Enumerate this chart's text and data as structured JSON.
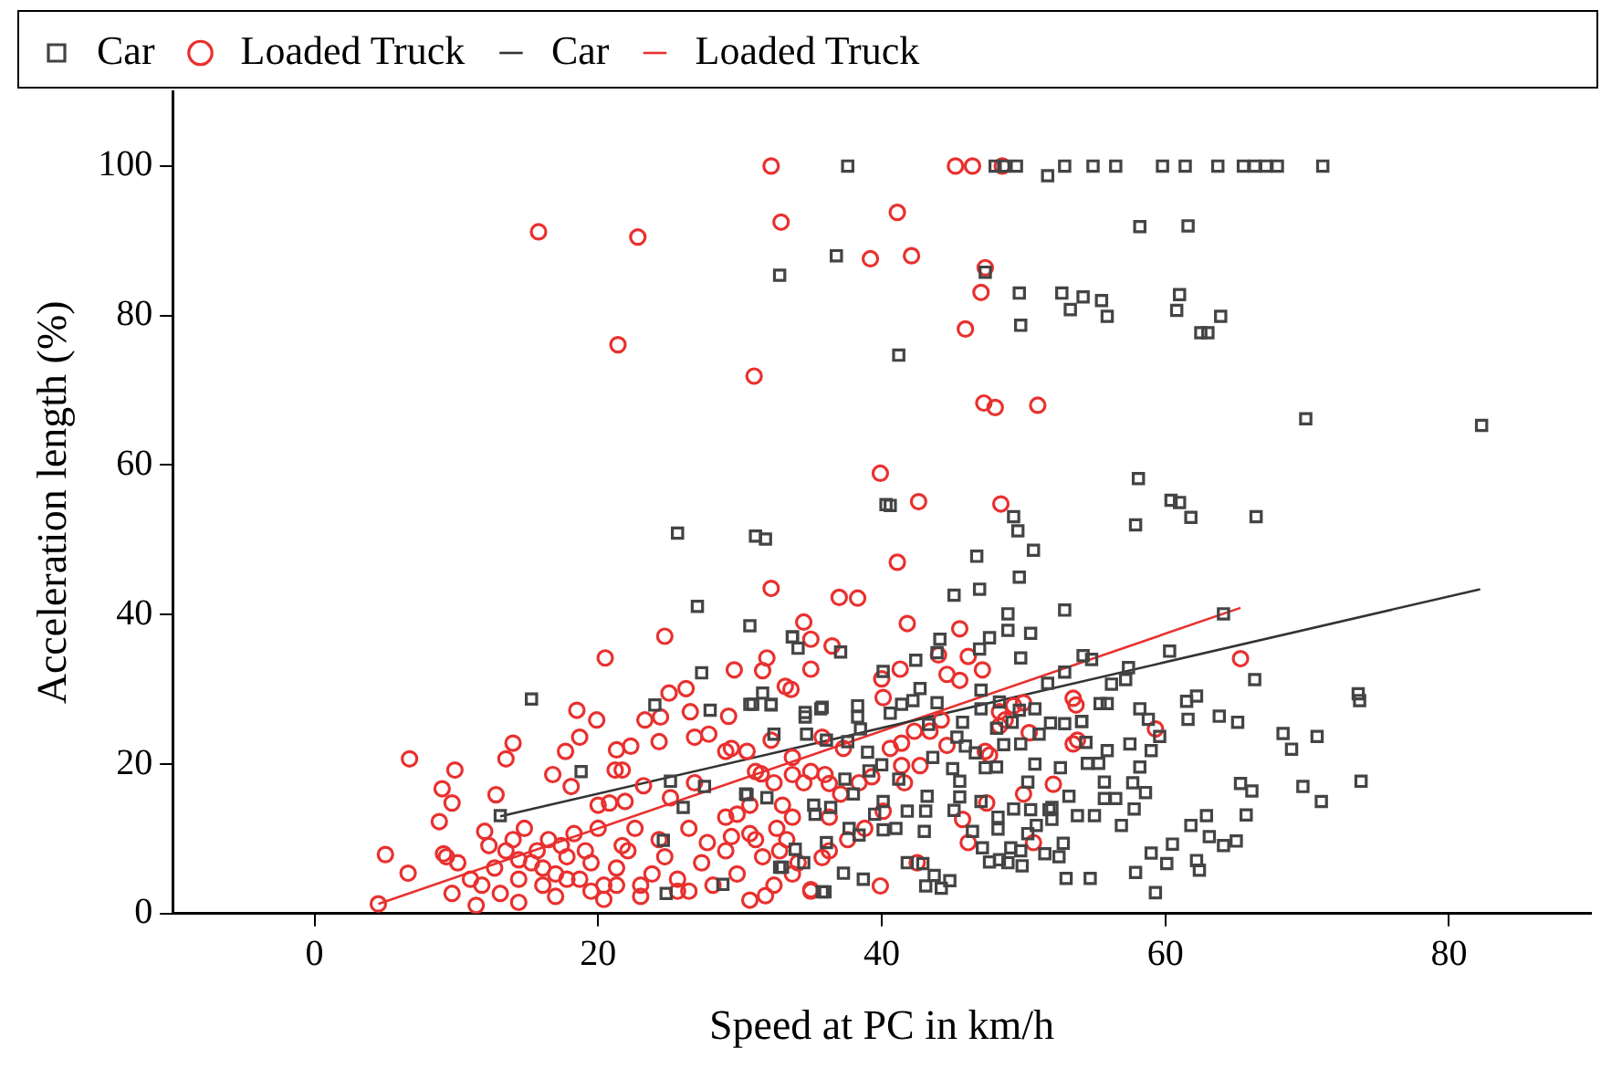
{
  "chart_data": {
    "type": "scatter",
    "xlabel": "Speed at PC in km/h",
    "ylabel": "Acceleration length (%)",
    "xlim": [
      -10,
      90
    ],
    "xticks": [
      0,
      20,
      40,
      60,
      80
    ],
    "ylim": [
      0,
      110
    ],
    "yticks": [
      0,
      20,
      40,
      60,
      80,
      100
    ],
    "grid": false,
    "legend": "top left",
    "series": [
      {
        "name": "Car",
        "color": "#444444",
        "marker": "square",
        "x": [
          37.6,
          48,
          48.6,
          49.5,
          51.7,
          52.9,
          54.9,
          56.5,
          59.8,
          61.4,
          63.7,
          65.5,
          66.3,
          67.1,
          67.9,
          71.1,
          58.2,
          61.6,
          36.8,
          32.8,
          47.3,
          49.7,
          52.7,
          54.2,
          55.5,
          53.3,
          55.9,
          61,
          60.8,
          63.9,
          62.5,
          63,
          49.8,
          41.2,
          69.9,
          82.3,
          58.1,
          61,
          40.6,
          25.6,
          31.1,
          31.8,
          27,
          30.7,
          33.7,
          27.3,
          15.3,
          24,
          27.9,
          30.7,
          32.2,
          31.6,
          32.4,
          18.8,
          25.1,
          27.5,
          30.5,
          31.9,
          13.1,
          26,
          24.6,
          24.8,
          28.8,
          33,
          35.3,
          35.8,
          34.6,
          35.7,
          40.3,
          49.3,
          49.6,
          50.7,
          46.7,
          49.7,
          46.9,
          45.1,
          60.4,
          57.9,
          61.8,
          66.4,
          52.9,
          48.9,
          64.1,
          60.3,
          66.3,
          73.6,
          73.7,
          68.3,
          70.7,
          68.9,
          73.8,
          69.7,
          71,
          65.3,
          66.1,
          65.7,
          65,
          64.1,
          62.9,
          61.8,
          63.1,
          60.5,
          59,
          60.1,
          62.2,
          62.4,
          59.3,
          57.9,
          54.7,
          53,
          61.5,
          62.2,
          61.6,
          63.8,
          65.1,
          58.2,
          58.8,
          59.6,
          59,
          57.5,
          58.2,
          57.7,
          58.6,
          57.8,
          56.9,
          55.7,
          56.5,
          55.7,
          55.9,
          55.4,
          55.9,
          54.4,
          54.1,
          55.3,
          54.5,
          52.6,
          53.2,
          53.8,
          55,
          52,
          52,
          52.8,
          51.5,
          52.5,
          50.3,
          50.9,
          49.8,
          49.9,
          48.9,
          48.3,
          47.6,
          43.1,
          44.2,
          44.8,
          43.7,
          41.8,
          42.9,
          38.7,
          37.3,
          36,
          49.1,
          48.2,
          49.3,
          50.5,
          51.8,
          50.3,
          50.8,
          49.8,
          48.1,
          48.6,
          48.1,
          45.9,
          45.3,
          45.7,
          46.6,
          47.3,
          45,
          45.5,
          45.5,
          47,
          45.1,
          46.4,
          47.1,
          48.2,
          43.2,
          43.1,
          41.8,
          41.2,
          43,
          43.6,
          43.9,
          42.7,
          42.2,
          41.4,
          40.6,
          40.1,
          42.4,
          43.9,
          44.1,
          46.9,
          47.6,
          48.9,
          50.5,
          49.8,
          47,
          47,
          48.3,
          49.7,
          50.8,
          51.7,
          52.9,
          54.2,
          54.8,
          56.2,
          57.2,
          57.4,
          51.9,
          52.9,
          54.1,
          51.1,
          49.2,
          43.3,
          40,
          39,
          38.5,
          37.6,
          36.1,
          34.7,
          40.1,
          39.5,
          40.1,
          41,
          39.1,
          38,
          37.4,
          36.4,
          35.2,
          37.7,
          38.4,
          33.9,
          32.8,
          34.5,
          36.1,
          30.4,
          32.2,
          30.9,
          34.1,
          33.7,
          37.1,
          35.8,
          38.3,
          38.3,
          34.6
        ],
        "values": [
          100,
          100,
          100,
          100,
          98.7,
          100,
          100,
          100,
          100,
          100,
          100,
          100,
          100,
          100,
          100,
          100,
          91.9,
          92,
          88,
          85.4,
          85.8,
          83,
          83,
          82.5,
          82,
          80.8,
          79.9,
          82.8,
          80.7,
          79.9,
          77.7,
          77.7,
          78.7,
          74.7,
          66.2,
          65.3,
          58.2,
          55,
          54.6,
          50.9,
          50.5,
          50.1,
          41.1,
          38.5,
          37,
          32.2,
          28.7,
          27.9,
          27.2,
          28,
          27.9,
          29.5,
          24,
          19,
          17.7,
          17,
          15.9,
          15.5,
          13.1,
          14.2,
          9.8,
          2.7,
          3.9,
          6.2,
          13.3,
          2.9,
          26.9,
          27.4,
          54.7,
          53.1,
          51.2,
          48.6,
          47.8,
          45,
          43.4,
          42.6,
          55.3,
          52,
          53,
          53.1,
          40.6,
          40.1,
          40.1,
          35.1,
          31.3,
          29.4,
          28.5,
          24.1,
          23.7,
          22,
          17.7,
          17,
          15,
          17.4,
          16.4,
          13.2,
          9.7,
          9.1,
          13.1,
          11.8,
          10.3,
          9.3,
          8.1,
          6.7,
          7.1,
          5.8,
          2.8,
          5.5,
          4.7,
          4.7,
          28.4,
          29.1,
          26,
          26.4,
          25.6,
          27.4,
          26,
          23.7,
          21.8,
          22.7,
          19.6,
          17.5,
          16.2,
          14,
          11.8,
          15.4,
          15.4,
          17.6,
          21.8,
          28.1,
          28.1,
          22.9,
          25.7,
          20.1,
          20.1,
          19.5,
          15.7,
          13.1,
          13.1,
          14.2,
          12.6,
          9.4,
          8,
          7.6,
          10.7,
          11.8,
          8.4,
          6.4,
          6.8,
          7.2,
          6.9,
          3.7,
          3.4,
          4.4,
          5.1,
          6.8,
          6.7,
          4.6,
          5.4,
          2.9,
          8.8,
          11.3,
          14,
          13.9,
          13.9,
          17.6,
          20,
          22.7,
          19.6,
          22.6,
          24.8,
          22.4,
          23.6,
          25.6,
          21.5,
          19.5,
          19.4,
          17.7,
          15.6,
          15,
          13.8,
          11,
          8.8,
          12.9,
          15.7,
          13.7,
          13.7,
          18,
          11,
          20.9,
          28.2,
          30.1,
          28.5,
          28,
          26.8,
          32.4,
          33.9,
          34.9,
          36.7,
          35.4,
          36.9,
          37.9,
          37.5,
          34.2,
          29.9,
          27.4,
          28.3,
          27.2,
          27.4,
          30.8,
          32.3,
          34.5,
          34,
          30.7,
          31.3,
          32.9,
          25.5,
          25.4,
          25.7,
          24,
          25.6,
          25.3,
          19.9,
          21.6,
          24.7,
          23,
          23.2,
          24,
          15,
          13.3,
          11.2,
          11.4,
          19.1,
          16,
          18,
          14.2,
          14.5,
          11.4,
          10.5,
          8.6,
          6.2,
          6.8,
          9.5,
          16,
          28,
          28,
          35.5,
          37,
          35,
          27.6,
          27.8,
          26.3,
          26.3
        ]
      },
      {
        "name": "Loaded Truck",
        "color": "#e8312f",
        "marker": "circle",
        "x": [
          32.2,
          45.2,
          46.4,
          48.5,
          15.8,
          22.8,
          32.9,
          41.1,
          39.2,
          42.1,
          47.3,
          47,
          45.9,
          21.4,
          31,
          47.2,
          48,
          51,
          39.9,
          42.6,
          48.4,
          32.2,
          37,
          24.7,
          20.5,
          34.5,
          35,
          36.5,
          31.9,
          29.6,
          26.2,
          25,
          33.2,
          33.6,
          18.5,
          19.9,
          23.3,
          24.4,
          26.5,
          29.2,
          6.7,
          9.9,
          9,
          9.7,
          8.8,
          12.8,
          13.5,
          14,
          5,
          6.6,
          4.5,
          12,
          9.1,
          16.8,
          18.1,
          17.7,
          18.7,
          21.3,
          22.3,
          21.2,
          21.7,
          20,
          20.8,
          21.9,
          24.3,
          23.2,
          25.1,
          26.8,
          26.8,
          27.8,
          29,
          29.4,
          31.5,
          30.7,
          33,
          34.5,
          36.3,
          29,
          29.8,
          32.6,
          33.3,
          35.8,
          35,
          30.7,
          31.8,
          9.3,
          10.1,
          11,
          11.8,
          12.7,
          13.5,
          14.4,
          15.3,
          16.1,
          17,
          17.8,
          18.7,
          19.5,
          20.4,
          21.3,
          22.1,
          23,
          23.8,
          24.7,
          25.6,
          26.4,
          27.3,
          28.1,
          29,
          29.8,
          31.6,
          32.4,
          33.7,
          9.7,
          11.4,
          13.1,
          14.8,
          16.5,
          18.3,
          20,
          21.7,
          22.6,
          24.3,
          26.4,
          27.7,
          29.4,
          31.1,
          14.4,
          17,
          20.4,
          23,
          25.6,
          12.3,
          14,
          15.7,
          17.4,
          19.1,
          14.4,
          16.1,
          17.8,
          19.5,
          21.3,
          41.1,
          38.3,
          41.8,
          45.5,
          31.6,
          35,
          41.3,
          40,
          40.1,
          44,
          44.6,
          45.5,
          46.1,
          47.1,
          65.3,
          53.5,
          53.7,
          53.8,
          53.5,
          59.3,
          52.1,
          50,
          47.4,
          50.7,
          46.1,
          45.7,
          47.6,
          48.3,
          48.7,
          49.3,
          50,
          50.4,
          47.3,
          44.6,
          42.7,
          41.4,
          40.6,
          41.6,
          40.1,
          42.5,
          39.9,
          35,
          36.3,
          34.1,
          32.8,
          30.7,
          33.7,
          36.3,
          37.6,
          38.8,
          38.4,
          39.3,
          37.1,
          36,
          35,
          33.7,
          32.4,
          31.1,
          30.5,
          32.2,
          33.7,
          35.8,
          37.3,
          41.4,
          42.3,
          43.4,
          44.2,
          48.3
        ],
        "values": [
          100,
          100,
          100,
          100,
          91.2,
          90.5,
          92.5,
          93.8,
          87.6,
          88,
          86.4,
          83.1,
          78.2,
          76.1,
          71.9,
          68.3,
          67.7,
          68,
          58.9,
          55.1,
          54.8,
          43.5,
          42.3,
          37.1,
          34.2,
          39,
          36.7,
          35.8,
          34.2,
          32.6,
          30.1,
          29.5,
          30.4,
          30,
          27.2,
          25.9,
          25.9,
          26.3,
          27,
          26.4,
          20.7,
          19.2,
          16.7,
          14.8,
          12.3,
          15.9,
          20.7,
          22.8,
          7.9,
          5.4,
          1.3,
          11,
          8,
          18.6,
          17,
          21.7,
          23.6,
          21.9,
          22.4,
          19.2,
          19.2,
          14.5,
          14.8,
          15,
          23,
          17.1,
          15.5,
          17.5,
          23.6,
          24,
          21.7,
          22.1,
          18.7,
          14.5,
          14.5,
          17.5,
          17.4,
          12.9,
          13.3,
          11.4,
          9.9,
          7.5,
          3,
          1.8,
          2.4,
          7.6,
          6.8,
          4.6,
          3.8,
          6.1,
          8.4,
          4.6,
          6.8,
          3.8,
          5.3,
          7.6,
          4.6,
          6.8,
          3.8,
          6.1,
          8.4,
          3.8,
          5.3,
          7.6,
          4.6,
          3,
          6.8,
          3.8,
          8.4,
          5.3,
          7.6,
          3.8,
          5.3,
          2.7,
          1.1,
          2.7,
          11.4,
          9.9,
          10.7,
          11.4,
          9.1,
          11.4,
          9.9,
          11.4,
          9.5,
          10.3,
          9.9,
          1.5,
          2.3,
          1.9,
          2.3,
          3,
          9.1,
          9.9,
          8.4,
          9.1,
          8.4,
          7.2,
          6.1,
          4.6,
          3,
          3.8,
          47,
          42.2,
          38.8,
          38.1,
          32.5,
          32.7,
          32.7,
          31.4,
          28.9,
          34.6,
          32,
          31.2,
          34.4,
          32.6,
          34.1,
          28.8,
          27.9,
          23.2,
          22.7,
          24.7,
          17.3,
          16,
          14.8,
          9.5,
          9.5,
          12.6,
          21.2,
          25.1,
          25.9,
          27.8,
          28.2,
          24.2,
          21.7,
          22.5,
          19.8,
          19.8,
          22.1,
          17.5,
          13.7,
          6.8,
          3.7,
          3.2,
          8.4,
          6.8,
          8.4,
          10.7,
          12.9,
          12.9,
          9.9,
          11.4,
          17.5,
          18.3,
          16,
          18.6,
          19,
          18.6,
          17.5,
          19,
          21.7,
          23.2,
          20.9,
          23.6,
          22.1,
          22.8,
          24.4,
          24.4,
          25.9,
          27
        ]
      },
      {
        "name": "Car",
        "type": "line",
        "color": "#333333",
        "marker": "none",
        "x": [
          13.1,
          82.2
        ],
        "values": [
          13,
          43.4
        ]
      },
      {
        "name": "Loaded Truck",
        "type": "line",
        "color": "#e8312f",
        "marker": "none",
        "x": [
          4.5,
          65.3
        ],
        "values": [
          1.3,
          40.9
        ]
      }
    ]
  }
}
